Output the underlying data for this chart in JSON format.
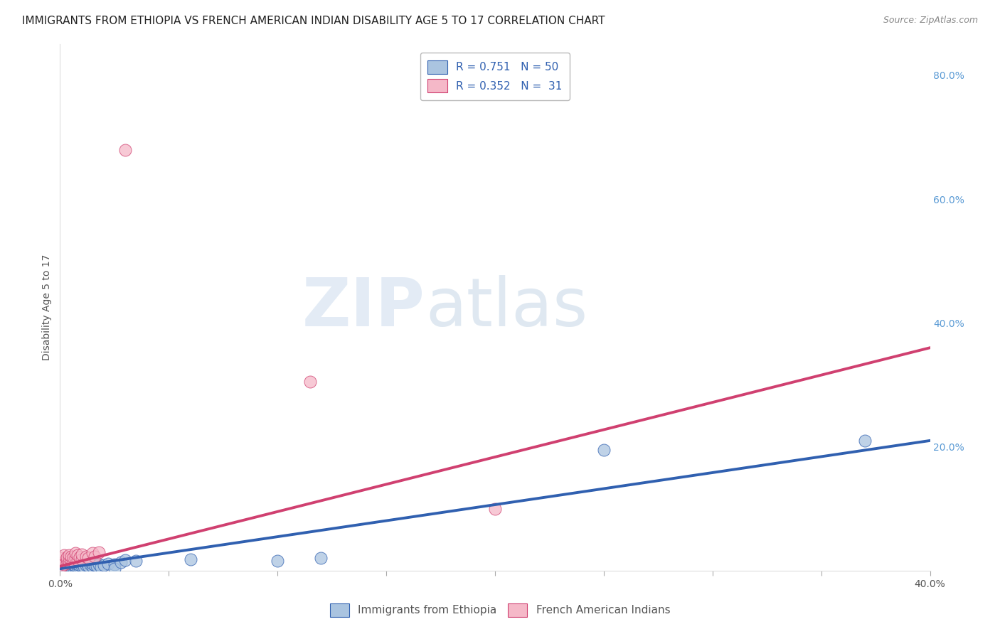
{
  "title": "IMMIGRANTS FROM ETHIOPIA VS FRENCH AMERICAN INDIAN DISABILITY AGE 5 TO 17 CORRELATION CHART",
  "source": "Source: ZipAtlas.com",
  "ylabel": "Disability Age 5 to 17",
  "xlim": [
    0.0,
    0.4
  ],
  "ylim": [
    0.0,
    0.85
  ],
  "R_blue": 0.751,
  "N_blue": 50,
  "R_pink": 0.352,
  "N_pink": 31,
  "blue_color": "#aac4e0",
  "pink_color": "#f5b8c8",
  "blue_line_color": "#3060b0",
  "pink_line_color": "#d04070",
  "blue_scatter": [
    [
      0.001,
      0.005
    ],
    [
      0.001,
      0.008
    ],
    [
      0.002,
      0.004
    ],
    [
      0.002,
      0.007
    ],
    [
      0.002,
      0.01
    ],
    [
      0.003,
      0.003
    ],
    [
      0.003,
      0.006
    ],
    [
      0.003,
      0.009
    ],
    [
      0.003,
      0.012
    ],
    [
      0.004,
      0.005
    ],
    [
      0.004,
      0.008
    ],
    [
      0.004,
      0.011
    ],
    [
      0.005,
      0.004
    ],
    [
      0.005,
      0.007
    ],
    [
      0.005,
      0.01
    ],
    [
      0.005,
      0.013
    ],
    [
      0.006,
      0.006
    ],
    [
      0.006,
      0.009
    ],
    [
      0.007,
      0.005
    ],
    [
      0.007,
      0.008
    ],
    [
      0.007,
      0.011
    ],
    [
      0.008,
      0.007
    ],
    [
      0.008,
      0.01
    ],
    [
      0.009,
      0.006
    ],
    [
      0.009,
      0.009
    ],
    [
      0.01,
      0.008
    ],
    [
      0.01,
      0.012
    ],
    [
      0.011,
      0.007
    ],
    [
      0.012,
      0.009
    ],
    [
      0.012,
      0.013
    ],
    [
      0.013,
      0.008
    ],
    [
      0.014,
      0.01
    ],
    [
      0.015,
      0.007
    ],
    [
      0.015,
      0.011
    ],
    [
      0.016,
      0.009
    ],
    [
      0.017,
      0.008
    ],
    [
      0.018,
      0.01
    ],
    [
      0.019,
      0.006
    ],
    [
      0.02,
      0.009
    ],
    [
      0.022,
      0.011
    ],
    [
      0.025,
      0.01
    ],
    [
      0.025,
      0.003
    ],
    [
      0.028,
      0.013
    ],
    [
      0.03,
      0.017
    ],
    [
      0.035,
      0.016
    ],
    [
      0.06,
      0.018
    ],
    [
      0.1,
      0.016
    ],
    [
      0.12,
      0.02
    ],
    [
      0.25,
      0.195
    ],
    [
      0.37,
      0.21
    ]
  ],
  "pink_scatter": [
    [
      0.001,
      0.008
    ],
    [
      0.001,
      0.012
    ],
    [
      0.001,
      0.02
    ],
    [
      0.002,
      0.01
    ],
    [
      0.002,
      0.015
    ],
    [
      0.002,
      0.025
    ],
    [
      0.003,
      0.012
    ],
    [
      0.003,
      0.018
    ],
    [
      0.003,
      0.022
    ],
    [
      0.004,
      0.015
    ],
    [
      0.004,
      0.02
    ],
    [
      0.004,
      0.025
    ],
    [
      0.005,
      0.018
    ],
    [
      0.005,
      0.023
    ],
    [
      0.006,
      0.016
    ],
    [
      0.006,
      0.022
    ],
    [
      0.007,
      0.02
    ],
    [
      0.007,
      0.028
    ],
    [
      0.008,
      0.017
    ],
    [
      0.008,
      0.025
    ],
    [
      0.009,
      0.022
    ],
    [
      0.01,
      0.018
    ],
    [
      0.01,
      0.026
    ],
    [
      0.012,
      0.023
    ],
    [
      0.013,
      0.02
    ],
    [
      0.015,
      0.028
    ],
    [
      0.016,
      0.023
    ],
    [
      0.018,
      0.03
    ],
    [
      0.03,
      0.68
    ],
    [
      0.115,
      0.305
    ],
    [
      0.2,
      0.1
    ]
  ],
  "blue_line_x": [
    0.0,
    0.4
  ],
  "blue_line_y": [
    0.003,
    0.21
  ],
  "pink_line_x": [
    0.0,
    0.4
  ],
  "pink_line_y": [
    0.007,
    0.36
  ],
  "watermark_zip": "ZIP",
  "watermark_atlas": "atlas",
  "background_color": "#ffffff",
  "grid_color": "#cccccc",
  "title_fontsize": 11,
  "axis_label_fontsize": 10,
  "tick_fontsize": 10,
  "legend_fontsize": 11
}
